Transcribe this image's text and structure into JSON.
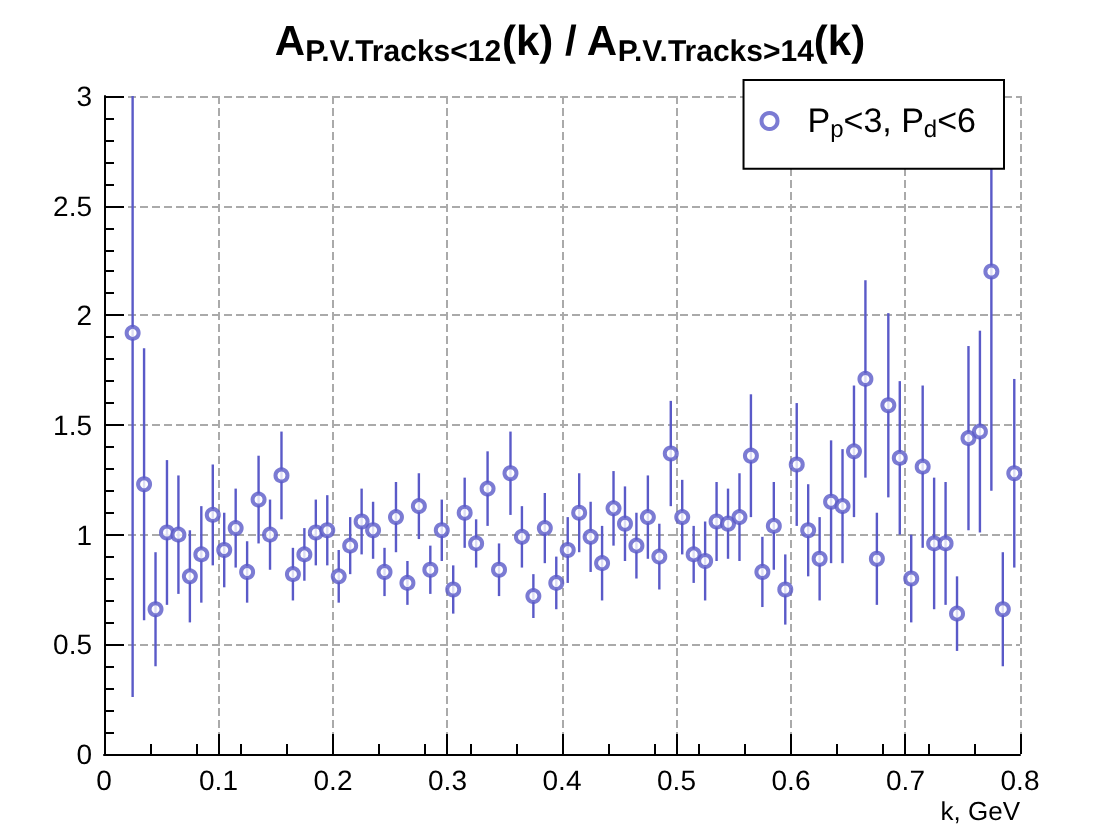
{
  "chart_data": {
    "type": "scatter",
    "title": "A$_{P.V.Tracks<12}$(k) / A$_{P.V.Tracks>14}$(k)",
    "xlabel": "k, GeV",
    "x": [
      0.025,
      0.035,
      0.045,
      0.055,
      0.065,
      0.075,
      0.085,
      0.095,
      0.105,
      0.115,
      0.125,
      0.135,
      0.145,
      0.155,
      0.165,
      0.175,
      0.185,
      0.195,
      0.205,
      0.215,
      0.225,
      0.235,
      0.245,
      0.255,
      0.265,
      0.275,
      0.285,
      0.295,
      0.305,
      0.315,
      0.325,
      0.335,
      0.345,
      0.355,
      0.365,
      0.375,
      0.385,
      0.395,
      0.405,
      0.415,
      0.425,
      0.435,
      0.445,
      0.455,
      0.465,
      0.475,
      0.485,
      0.495,
      0.505,
      0.515,
      0.525,
      0.535,
      0.545,
      0.555,
      0.565,
      0.575,
      0.585,
      0.595,
      0.605,
      0.615,
      0.625,
      0.635,
      0.645,
      0.655,
      0.665,
      0.675,
      0.685,
      0.695,
      0.705,
      0.715,
      0.725,
      0.735,
      0.745,
      0.755,
      0.765,
      0.775,
      0.785,
      0.795
    ],
    "series": [
      {
        "name": "P$_{p}$<3, P$_{d}$<6",
        "color": "#5a5ac8",
        "values": [
          1.92,
          1.23,
          0.66,
          1.01,
          1.0,
          0.81,
          0.91,
          1.09,
          0.93,
          1.03,
          0.83,
          1.16,
          1.0,
          1.27,
          0.82,
          0.91,
          1.01,
          1.02,
          0.81,
          0.95,
          1.06,
          1.02,
          0.83,
          1.08,
          0.78,
          1.13,
          0.84,
          1.02,
          0.75,
          1.1,
          0.96,
          1.21,
          0.84,
          1.28,
          0.99,
          0.72,
          1.03,
          0.78,
          0.93,
          1.1,
          0.99,
          0.87,
          1.12,
          1.05,
          0.95,
          1.08,
          0.9,
          1.37,
          1.08,
          0.91,
          0.88,
          1.06,
          1.05,
          1.08,
          1.36,
          0.83,
          1.04,
          0.75,
          1.32,
          1.02,
          0.89,
          1.15,
          1.13,
          1.38,
          1.71,
          0.89,
          1.59,
          1.35,
          0.8,
          1.31,
          0.96,
          0.96,
          0.64,
          1.44,
          1.47,
          2.2,
          0.66,
          1.28
        ],
        "errors": [
          [
            0.26,
            3
          ],
          0.62,
          0.26,
          0.33,
          0.27,
          0.21,
          0.22,
          0.23,
          0.17,
          0.18,
          0.14,
          0.2,
          0.16,
          0.2,
          0.12,
          0.12,
          0.15,
          0.16,
          0.12,
          0.13,
          0.15,
          0.13,
          0.11,
          0.16,
          0.1,
          0.15,
          0.11,
          0.14,
          0.11,
          0.16,
          0.11,
          0.17,
          0.12,
          0.19,
          0.14,
          0.1,
          0.16,
          0.12,
          0.15,
          0.18,
          0.16,
          0.17,
          0.17,
          0.17,
          0.15,
          0.19,
          0.15,
          0.24,
          0.17,
          0.13,
          0.18,
          0.18,
          0.16,
          0.2,
          0.28,
          0.16,
          0.2,
          0.16,
          0.28,
          0.21,
          0.19,
          0.28,
          0.26,
          0.3,
          0.45,
          0.21,
          0.42,
          0.35,
          0.2,
          0.37,
          0.3,
          0.28,
          0.17,
          0.42,
          0.46,
          [
            1.2,
            2.67
          ],
          0.26,
          0.43
        ]
      }
    ],
    "xlim": [
      0,
      0.8
    ],
    "xticks": [
      0,
      0.1,
      0.2,
      0.3,
      0.4,
      0.5,
      0.6,
      0.7,
      0.8
    ],
    "ylim": [
      0,
      3
    ],
    "yticks": [
      0,
      0.5,
      1,
      1.5,
      2,
      2.5,
      3
    ],
    "grid": true,
    "legend": "top right",
    "marker": "circle"
  }
}
